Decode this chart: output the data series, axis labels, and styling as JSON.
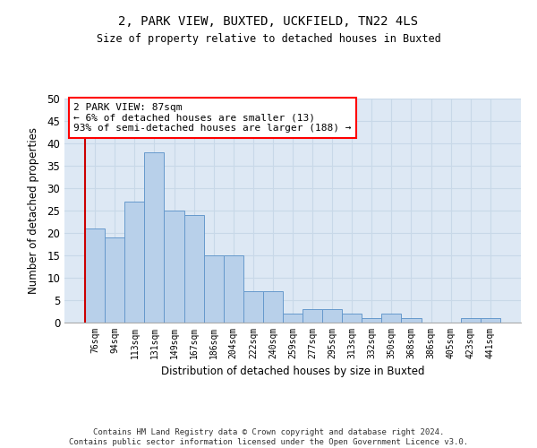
{
  "title1": "2, PARK VIEW, BUXTED, UCKFIELD, TN22 4LS",
  "title2": "Size of property relative to detached houses in Buxted",
  "xlabel": "Distribution of detached houses by size in Buxted",
  "ylabel": "Number of detached properties",
  "categories": [
    "76sqm",
    "94sqm",
    "113sqm",
    "131sqm",
    "149sqm",
    "167sqm",
    "186sqm",
    "204sqm",
    "222sqm",
    "240sqm",
    "259sqm",
    "277sqm",
    "295sqm",
    "313sqm",
    "332sqm",
    "350sqm",
    "368sqm",
    "386sqm",
    "405sqm",
    "423sqm",
    "441sqm"
  ],
  "values": [
    21,
    19,
    27,
    38,
    25,
    24,
    15,
    15,
    7,
    7,
    2,
    3,
    3,
    2,
    1,
    2,
    1,
    0,
    0,
    1,
    1
  ],
  "bar_color": "#b8d0ea",
  "bar_edge_color": "#6699cc",
  "grid_color": "#c8d8e8",
  "bg_color": "#dde8f4",
  "annotation_text": "2 PARK VIEW: 87sqm\n← 6% of detached houses are smaller (13)\n93% of semi-detached houses are larger (188) →",
  "vline_color": "#cc0000",
  "ylim": [
    0,
    50
  ],
  "yticks": [
    0,
    5,
    10,
    15,
    20,
    25,
    30,
    35,
    40,
    45,
    50
  ],
  "footer": "Contains HM Land Registry data © Crown copyright and database right 2024.\nContains public sector information licensed under the Open Government Licence v3.0."
}
